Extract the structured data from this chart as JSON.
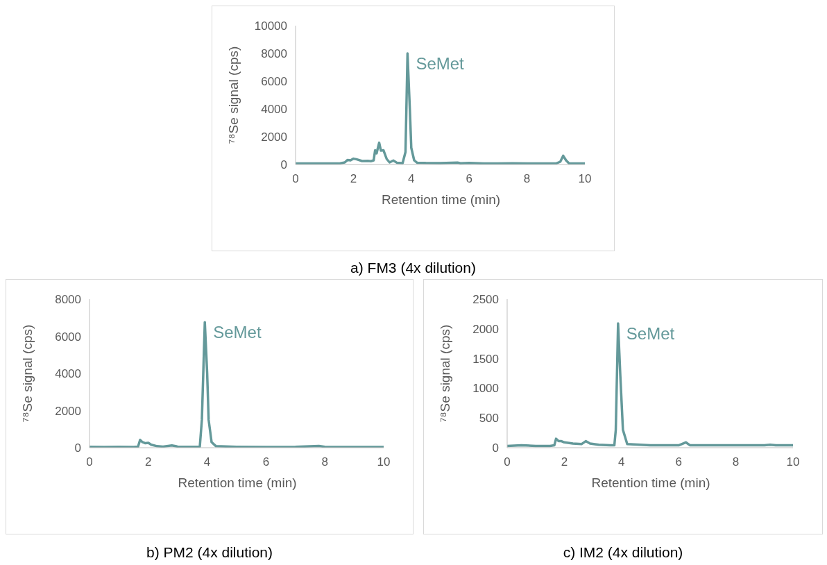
{
  "chart_data": [
    {
      "type": "line",
      "title": "a) FM3 (4x dilution)",
      "xlabel": "Retention time (min)",
      "ylabel": "⁷⁸Se signal (cps)",
      "color": "#64999a",
      "marker": "none",
      "x": [
        0,
        0.5,
        1,
        1.5,
        1.7,
        1.8,
        1.9,
        2.0,
        2.1,
        2.3,
        2.5,
        2.6,
        2.7,
        2.75,
        2.8,
        2.89,
        2.95,
        3.04,
        3.15,
        3.25,
        3.38,
        3.5,
        3.7,
        3.8,
        3.87,
        3.95,
        4.0,
        4.1,
        4.2,
        4.5,
        5,
        5.6,
        5.7,
        6,
        6.5,
        7,
        7.5,
        8,
        8.5,
        9,
        9.15,
        9.25,
        9.35,
        9.45,
        9.7,
        10
      ],
      "values": [
        80,
        70,
        80,
        70,
        150,
        330,
        300,
        420,
        380,
        250,
        260,
        240,
        300,
        1030,
        800,
        1570,
        1000,
        1020,
        400,
        150,
        290,
        130,
        100,
        900,
        8000,
        4000,
        1200,
        300,
        130,
        110,
        100,
        140,
        90,
        110,
        80,
        70,
        90,
        70,
        70,
        70,
        200,
        630,
        300,
        90,
        70,
        70
      ],
      "xlim": [
        0,
        10
      ],
      "xticks": [
        0,
        2,
        4,
        6,
        8,
        10
      ],
      "ylim": [
        0,
        10000
      ],
      "yticks": [
        0,
        2000,
        4000,
        6000,
        8000,
        10000
      ],
      "annotations": [
        {
          "text": "SeMet",
          "x": 3.87,
          "y": 8000
        }
      ]
    },
    {
      "type": "line",
      "title": "b) PM2 (4x dilution)",
      "xlabel": "Retention time (min)",
      "ylabel": "⁷⁸Se signal (cps)",
      "color": "#64999a",
      "marker": "none",
      "x": [
        0,
        0.5,
        1,
        1.5,
        1.65,
        1.72,
        1.8,
        1.9,
        2.0,
        2.1,
        2.3,
        2.5,
        2.8,
        3,
        3.5,
        3.75,
        3.82,
        3.92,
        4.0,
        4.05,
        4.15,
        4.3,
        5,
        6,
        7,
        7.8,
        8,
        9,
        10
      ],
      "values": [
        50,
        40,
        50,
        40,
        60,
        420,
        300,
        240,
        260,
        160,
        80,
        60,
        120,
        60,
        50,
        60,
        1500,
        6760,
        4000,
        1500,
        300,
        80,
        50,
        40,
        50,
        90,
        50,
        40,
        40
      ],
      "xlim": [
        0,
        10
      ],
      "xticks": [
        0,
        2,
        4,
        6,
        8,
        10
      ],
      "ylim": [
        0,
        8000
      ],
      "yticks": [
        0,
        2000,
        4000,
        6000,
        8000
      ],
      "annotations": [
        {
          "text": "SeMet",
          "x": 3.92,
          "y": 6760
        }
      ]
    },
    {
      "type": "line",
      "title": "c) IM2 (4x dilution)",
      "xlabel": "Retention time (min)",
      "ylabel": "⁷⁸Se signal (cps)",
      "color": "#64999a",
      "marker": "none",
      "x": [
        0,
        0.5,
        1,
        1.5,
        1.65,
        1.71,
        1.8,
        1.9,
        2.0,
        2.3,
        2.6,
        2.75,
        2.9,
        3.2,
        3.6,
        3.75,
        3.8,
        3.88,
        3.96,
        4.05,
        4.2,
        5,
        6,
        6.25,
        6.4,
        7,
        8,
        9,
        9.2,
        9.4,
        10
      ],
      "values": [
        30,
        40,
        30,
        30,
        40,
        150,
        110,
        110,
        90,
        70,
        60,
        110,
        70,
        50,
        40,
        40,
        300,
        2090,
        1200,
        300,
        60,
        40,
        40,
        90,
        40,
        40,
        40,
        40,
        50,
        40,
        40
      ],
      "xlim": [
        0,
        10
      ],
      "xticks": [
        0,
        2,
        4,
        6,
        8,
        10
      ],
      "ylim": [
        0,
        2500
      ],
      "yticks": [
        0,
        500,
        1000,
        1500,
        2000,
        2500
      ],
      "annotations": [
        {
          "text": "SeMet",
          "x": 3.88,
          "y": 2090
        }
      ]
    }
  ]
}
